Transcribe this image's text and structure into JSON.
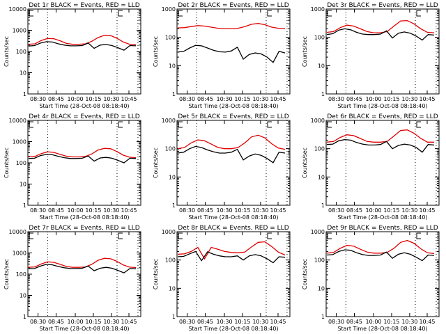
{
  "chart_data": [
    {
      "type": "line",
      "title": "Det 1r BLACK = Events, RED = LLD",
      "ylabel": "Counts/sec",
      "xlabel": "Start Time (28-Oct-08 08:18:40)",
      "yscale": "log",
      "ylim": [
        1,
        10000
      ],
      "yticks": [
        "1",
        "10",
        "100",
        "1000",
        "10000"
      ],
      "xticks": [
        "08:30",
        "08:45",
        "10:00",
        "10:15",
        "10:30",
        "10:45"
      ],
      "series": [
        {
          "name": "LLD",
          "color": "#e00000",
          "shape": [
            220,
            230,
            330,
            410,
            400,
            320,
            240,
            220,
            220,
            230,
            300,
            450,
            580,
            560,
            420,
            280,
            220,
            210
          ]
        },
        {
          "name": "Events",
          "color": "#000000",
          "shape": [
            180,
            190,
            250,
            290,
            280,
            230,
            200,
            185,
            185,
            190,
            250,
            140,
            200,
            215,
            190,
            150,
            115,
            190,
            185
          ]
        }
      ]
    },
    {
      "type": "line",
      "title": "Det 2r BLACK = Events, RED = LLD",
      "ylabel": "Counts/sec",
      "xlabel": "Start Time (28-Oct-08 08:18:40)",
      "yscale": "log",
      "ylim": [
        1,
        1000
      ],
      "yticks": [
        "1",
        "10",
        "100",
        "1000"
      ],
      "xticks": [
        "08:30",
        "08:45",
        "10:30",
        "10:15",
        "10:30",
        "10:45"
      ],
      "series": [
        {
          "name": "LLD",
          "color": "#e00000",
          "shape": [
            215,
            220,
            240,
            260,
            250,
            230,
            210,
            200,
            200,
            210,
            240,
            290,
            310,
            280,
            230,
            210,
            200
          ]
        },
        {
          "name": "Events",
          "color": "#000000",
          "shape": [
            30,
            32,
            42,
            52,
            50,
            42,
            35,
            31,
            30,
            33,
            45,
            17,
            25,
            28,
            26,
            20,
            13,
            32,
            28
          ]
        }
      ]
    },
    {
      "type": "line",
      "title": "Det 3r BLACK = Events, RED = LLD",
      "ylabel": "Counts/sec",
      "xlabel": "Start Time (28-Oct-08 08:18:40)",
      "yscale": "log",
      "ylim": [
        1,
        1000
      ],
      "yticks": [
        "1",
        "10",
        "100",
        "1000"
      ],
      "xticks": [
        "08:30",
        "08:45",
        "10:00",
        "10:15",
        "10:30",
        "10:45"
      ],
      "series": [
        {
          "name": "LLD",
          "color": "#e00000",
          "shape": [
            150,
            160,
            220,
            270,
            250,
            200,
            160,
            145,
            145,
            160,
            250,
            380,
            390,
            300,
            200,
            150,
            145
          ]
        },
        {
          "name": "Events",
          "color": "#000000",
          "shape": [
            125,
            135,
            180,
            200,
            185,
            150,
            130,
            125,
            125,
            130,
            170,
            95,
            140,
            155,
            140,
            110,
            80,
            125,
            120
          ]
        }
      ]
    },
    {
      "type": "line",
      "title": "Det 4r BLACK = Events, RED = LLD",
      "ylabel": "Counts/sec",
      "xlabel": "Start Time (28-Oct-08 08:18:40)",
      "yscale": "log",
      "ylim": [
        1,
        10000
      ],
      "yticks": [
        "1",
        "10",
        "100",
        "1000",
        "10000"
      ],
      "xticks": [
        "08:30",
        "08:45",
        "10:00",
        "10:15",
        "10:30",
        "10:45"
      ],
      "series": [
        {
          "name": "LLD",
          "color": "#e00000",
          "shape": [
            190,
            200,
            270,
            330,
            310,
            250,
            205,
            190,
            190,
            200,
            260,
            400,
            480,
            460,
            340,
            230,
            185,
            175
          ]
        },
        {
          "name": "Events",
          "color": "#000000",
          "shape": [
            160,
            165,
            220,
            250,
            240,
            200,
            175,
            160,
            160,
            165,
            210,
            120,
            170,
            180,
            165,
            130,
            100,
            165,
            160
          ]
        }
      ]
    },
    {
      "type": "line",
      "title": "Det 5r BLACK = Events, RED = LLD",
      "ylabel": "Counts/sec",
      "xlabel": "Start Time (28-Oct-08 08:18:40)",
      "yscale": "log",
      "ylim": [
        1,
        1000
      ],
      "yticks": [
        "1",
        "10",
        "100",
        "1000"
      ],
      "xticks": [
        "08:30",
        "08:45",
        "10:30",
        "10:15",
        "10:30",
        "10:45"
      ],
      "series": [
        {
          "name": "LLD",
          "color": "#e00000",
          "shape": [
            100,
            110,
            160,
            205,
            190,
            145,
            110,
            100,
            100,
            110,
            160,
            260,
            300,
            240,
            150,
            105,
            95
          ]
        },
        {
          "name": "Events",
          "color": "#000000",
          "shape": [
            70,
            75,
            100,
            120,
            110,
            90,
            78,
            70,
            70,
            75,
            95,
            40,
            55,
            65,
            58,
            45,
            32,
            75,
            70
          ]
        }
      ]
    },
    {
      "type": "line",
      "title": "Det 6r BLACK = Events, RED = LLD",
      "ylabel": "Counts/sec",
      "xlabel": "Start Time (28-Oct-08 08:18:40)",
      "yscale": "log",
      "ylim": [
        1,
        1000
      ],
      "yticks": [
        "1",
        "10",
        "100",
        "1000"
      ],
      "xticks": [
        "08:30",
        "08:45",
        "10:00",
        "10:15",
        "10:30",
        "10:45"
      ],
      "series": [
        {
          "name": "LLD",
          "color": "#e00000",
          "shape": [
            170,
            180,
            250,
            310,
            290,
            230,
            180,
            170,
            170,
            180,
            280,
            440,
            460,
            350,
            230,
            170,
            170
          ]
        },
        {
          "name": "Events",
          "color": "#000000",
          "shape": [
            140,
            145,
            190,
            210,
            200,
            165,
            145,
            135,
            135,
            140,
            180,
            100,
            130,
            145,
            135,
            110,
            75,
            140,
            135
          ]
        }
      ]
    },
    {
      "type": "line",
      "title": "Det 7r BLACK = Events, RED = LLD",
      "ylabel": "Counts/sec",
      "xlabel": "Start Time (28-Oct-08 08:18:40)",
      "yscale": "log",
      "ylim": [
        1,
        10000
      ],
      "yticks": [
        "1",
        "10",
        "100",
        "1000",
        "10000"
      ],
      "xticks": [
        "08:30",
        "08:45",
        "10:00",
        "10:15",
        "10:30",
        "10:45"
      ],
      "series": [
        {
          "name": "LLD",
          "color": "#e00000",
          "shape": [
            210,
            220,
            300,
            380,
            360,
            290,
            230,
            210,
            210,
            220,
            290,
            450,
            560,
            530,
            400,
            270,
            215,
            205
          ]
        },
        {
          "name": "Events",
          "color": "#000000",
          "shape": [
            180,
            185,
            240,
            290,
            275,
            230,
            200,
            185,
            185,
            190,
            240,
            145,
            190,
            210,
            190,
            150,
            115,
            185,
            180
          ]
        }
      ]
    },
    {
      "type": "line",
      "title": "Det 8r BLACK = Events, RED = LLD",
      "ylabel": "Counts/sec",
      "xlabel": "Start Time (28-Oct-08 08:18:40)",
      "yscale": "log",
      "ylim": [
        1,
        1000
      ],
      "yticks": [
        "1",
        "10",
        "100",
        "1000"
      ],
      "xticks": [
        "08:30",
        "08:45",
        "10:30",
        "10:15",
        "10:30",
        "10:45"
      ],
      "series": [
        {
          "name": "LLD",
          "color": "#e00000",
          "shape": [
            160,
            165,
            200,
            280,
            110,
            280,
            240,
            200,
            185,
            180,
            190,
            290,
            420,
            440,
            300,
            190,
            150
          ]
        },
        {
          "name": "Events",
          "color": "#000000",
          "shape": [
            130,
            135,
            165,
            200,
            95,
            195,
            160,
            140,
            130,
            130,
            140,
            100,
            140,
            155,
            140,
            110,
            80,
            130,
            125
          ]
        }
      ]
    },
    {
      "type": "line",
      "title": "Det 9r BLACK = Events, RED = LLD",
      "ylabel": "Counts/sec",
      "xlabel": "Start Time (28-Oct-08 08:18:40)",
      "yscale": "log",
      "ylim": [
        1,
        1000
      ],
      "yticks": [
        "1",
        "10",
        "100",
        "1000"
      ],
      "xticks": [
        "08:30",
        "08:45",
        "10:00",
        "10:15",
        "10:30",
        "10:45"
      ],
      "series": [
        {
          "name": "LLD",
          "color": "#e00000",
          "shape": [
            175,
            185,
            260,
            330,
            310,
            240,
            190,
            175,
            175,
            185,
            260,
            420,
            490,
            390,
            250,
            180,
            170
          ]
        },
        {
          "name": "Events",
          "color": "#000000",
          "shape": [
            150,
            155,
            200,
            230,
            220,
            180,
            155,
            145,
            145,
            150,
            190,
            115,
            160,
            180,
            160,
            125,
            95,
            150,
            145
          ]
        }
      ]
    }
  ]
}
